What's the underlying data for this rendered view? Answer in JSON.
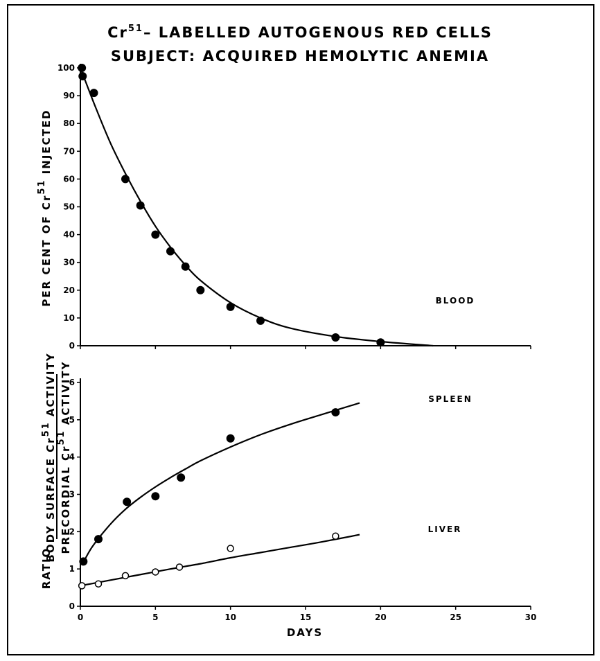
{
  "chart_data": [
    {
      "type": "scatter",
      "title_prefix": "Cr",
      "title_sup": "51",
      "title_rest": "– LABELLED AUTOGENOUS RED CELLS",
      "subtitle": "SUBJECT: ACQUIRED HEMOLYTIC ANEMIA",
      "ylabel_prefix": "PER CENT OF Cr",
      "ylabel_sup": "51",
      "ylabel_rest": " INJECTED",
      "xlim": [
        0,
        30
      ],
      "ylim": [
        0,
        100
      ],
      "yticks": [
        "0",
        "10",
        "20",
        "30",
        "40",
        "50",
        "60",
        "70",
        "80",
        "90",
        "100"
      ],
      "grid": false,
      "series": [
        {
          "name": "BLOOD",
          "marker": "filled",
          "points": [
            {
              "x": 0.1,
              "y": 100
            },
            {
              "x": 0.15,
              "y": 97
            },
            {
              "x": 0.9,
              "y": 91
            },
            {
              "x": 3.0,
              "y": 60
            },
            {
              "x": 4.0,
              "y": 50.5
            },
            {
              "x": 5.0,
              "y": 40
            },
            {
              "x": 6.0,
              "y": 34
            },
            {
              "x": 7.0,
              "y": 28.5
            },
            {
              "x": 8.0,
              "y": 20
            },
            {
              "x": 10.0,
              "y": 14
            },
            {
              "x": 12.0,
              "y": 9
            },
            {
              "x": 17.0,
              "y": 3
            },
            {
              "x": 20.0,
              "y": 1.2
            }
          ],
          "curve": [
            {
              "x": 0,
              "y": 100
            },
            {
              "x": 1,
              "y": 86
            },
            {
              "x": 2,
              "y": 73
            },
            {
              "x": 3,
              "y": 62
            },
            {
              "x": 4,
              "y": 52
            },
            {
              "x": 5,
              "y": 43
            },
            {
              "x": 6,
              "y": 35.5
            },
            {
              "x": 7,
              "y": 29
            },
            {
              "x": 8,
              "y": 23.5
            },
            {
              "x": 10,
              "y": 15.5
            },
            {
              "x": 12,
              "y": 10
            },
            {
              "x": 14,
              "y": 6.3
            },
            {
              "x": 17,
              "y": 3.3
            },
            {
              "x": 20,
              "y": 1.5
            },
            {
              "x": 23.5,
              "y": 0
            }
          ]
        }
      ]
    },
    {
      "type": "scatter",
      "ylabel_ratio": "RATIO",
      "ylabel_num_prefix": "BODY SURFACE Cr",
      "ylabel_num_sup": "51",
      "ylabel_num_rest": " ACTIVITY",
      "ylabel_den_prefix": "PRECORDIAL Cr",
      "ylabel_den_sup": "51",
      "ylabel_den_rest": " ACTIVITY",
      "xlabel": "DAYS",
      "xlim": [
        0,
        30
      ],
      "ylim": [
        0,
        6
      ],
      "xticks": [
        "0",
        "5",
        "10",
        "15",
        "20",
        "25",
        "30"
      ],
      "yticks": [
        "0",
        "1",
        "2",
        "3",
        "4",
        "5",
        "6"
      ],
      "grid": false,
      "series": [
        {
          "name": "SPLEEN",
          "marker": "filled",
          "points": [
            {
              "x": 0.2,
              "y": 1.2
            },
            {
              "x": 1.2,
              "y": 1.8
            },
            {
              "x": 3.1,
              "y": 2.8
            },
            {
              "x": 5.0,
              "y": 2.95
            },
            {
              "x": 6.7,
              "y": 3.45
            },
            {
              "x": 10.0,
              "y": 4.5
            },
            {
              "x": 17.0,
              "y": 5.2
            }
          ],
          "curve": [
            {
              "x": 0.1,
              "y": 1.1
            },
            {
              "x": 0.8,
              "y": 1.6
            },
            {
              "x": 2,
              "y": 2.2
            },
            {
              "x": 3,
              "y": 2.6
            },
            {
              "x": 4,
              "y": 2.92
            },
            {
              "x": 5,
              "y": 3.2
            },
            {
              "x": 6,
              "y": 3.45
            },
            {
              "x": 7,
              "y": 3.68
            },
            {
              "x": 8,
              "y": 3.9
            },
            {
              "x": 10,
              "y": 4.27
            },
            {
              "x": 12,
              "y": 4.6
            },
            {
              "x": 14,
              "y": 4.88
            },
            {
              "x": 16,
              "y": 5.13
            },
            {
              "x": 18.6,
              "y": 5.45
            }
          ]
        },
        {
          "name": "LIVER",
          "marker": "open",
          "points": [
            {
              "x": 0.1,
              "y": 0.55
            },
            {
              "x": 1.2,
              "y": 0.6
            },
            {
              "x": 3.0,
              "y": 0.82
            },
            {
              "x": 5.0,
              "y": 0.92
            },
            {
              "x": 6.6,
              "y": 1.05
            },
            {
              "x": 10.0,
              "y": 1.55
            },
            {
              "x": 17.0,
              "y": 1.88
            }
          ],
          "curve": [
            {
              "x": 0,
              "y": 0.55
            },
            {
              "x": 2,
              "y": 0.7
            },
            {
              "x": 4,
              "y": 0.85
            },
            {
              "x": 6,
              "y": 1.0
            },
            {
              "x": 8,
              "y": 1.14
            },
            {
              "x": 10,
              "y": 1.3
            },
            {
              "x": 12,
              "y": 1.44
            },
            {
              "x": 14,
              "y": 1.58
            },
            {
              "x": 16,
              "y": 1.72
            },
            {
              "x": 18.6,
              "y": 1.92
            }
          ]
        }
      ]
    }
  ]
}
